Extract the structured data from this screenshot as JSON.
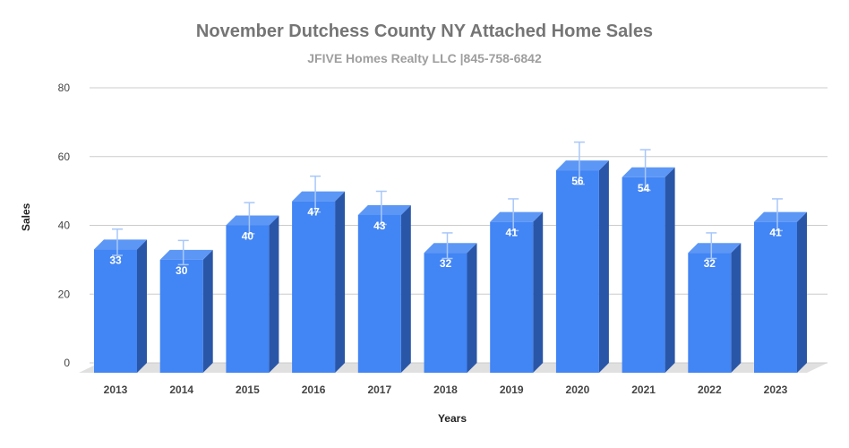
{
  "chart_data": {
    "type": "bar",
    "title": "November Dutchess County NY Attached Home Sales",
    "subtitle": "JFIVE Homes Realty LLC |845-758-6842",
    "xlabel": "Years",
    "ylabel": "Sales",
    "categories": [
      "2013",
      "2014",
      "2015",
      "2016",
      "2017",
      "2018",
      "2019",
      "2020",
      "2021",
      "2022",
      "2023"
    ],
    "values": [
      33,
      30,
      40,
      47,
      43,
      32,
      41,
      56,
      54,
      32,
      41
    ],
    "data_labels": [
      "33",
      "30",
      "40",
      "47",
      "43",
      "32",
      "41",
      "56",
      "54",
      "32",
      "41"
    ],
    "yticks": [
      "0",
      "20",
      "40",
      "60",
      "80"
    ],
    "ylim": [
      0,
      80
    ],
    "error_bars": true,
    "grid": true,
    "style": "3d",
    "colors": {
      "bar_front": "#4285f4",
      "bar_top": "#5c97f6",
      "bar_side": "#2a56a8",
      "error_bar": "#a8c7fa",
      "grid": "#cccccc",
      "floor": "#e0e0e0"
    }
  }
}
